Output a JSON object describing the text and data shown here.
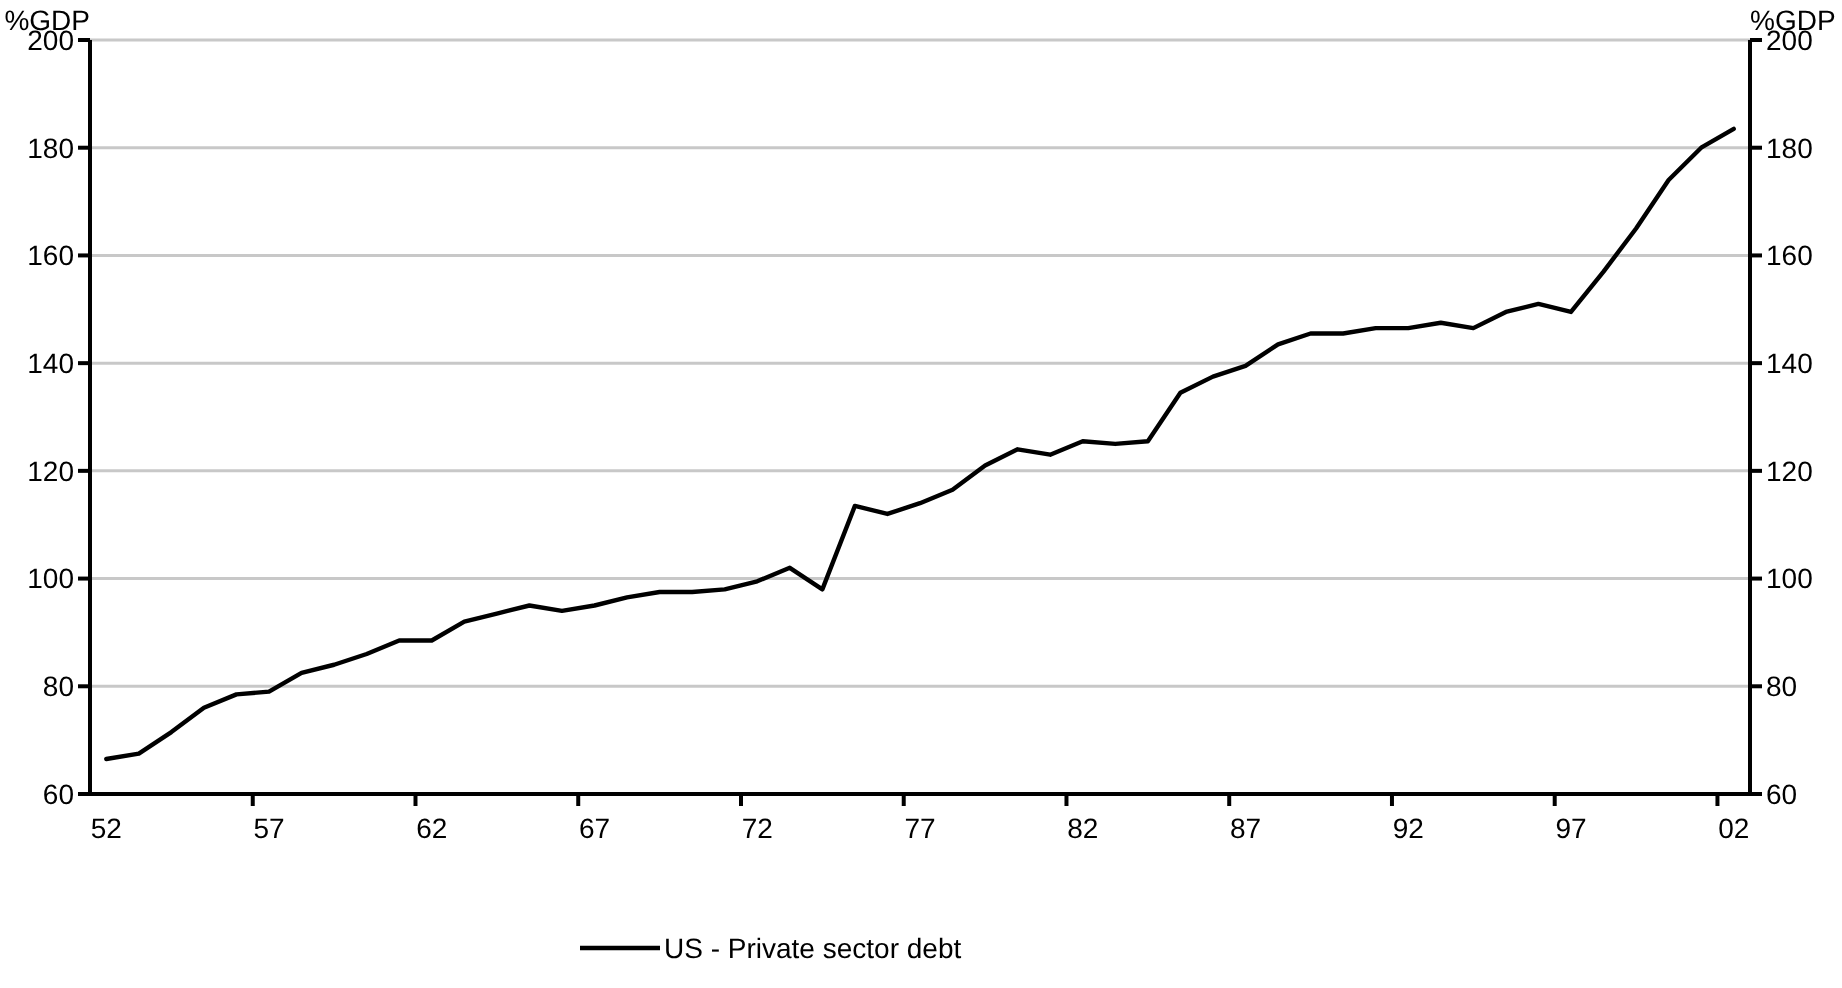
{
  "chart_data": {
    "type": "line",
    "ylabel": "%GDP",
    "y2label": "%GDP",
    "categories": [
      "52",
      null,
      null,
      null,
      null,
      "57",
      null,
      null,
      null,
      null,
      "62",
      null,
      null,
      null,
      null,
      "67",
      null,
      null,
      null,
      null,
      "72",
      null,
      null,
      null,
      null,
      "77",
      null,
      null,
      null,
      null,
      "82",
      null,
      null,
      null,
      null,
      "87",
      null,
      null,
      null,
      null,
      "92",
      null,
      null,
      null,
      null,
      "97",
      null,
      null,
      null,
      null,
      "02"
    ],
    "series": [
      {
        "name": "US - Private sector debt",
        "color": "#000000",
        "values": [
          66.5,
          67.5,
          71.5,
          76,
          78.5,
          79,
          82.5,
          84,
          86,
          88.5,
          88.5,
          92,
          93.5,
          95,
          94,
          95,
          96.5,
          97.5,
          97.5,
          98,
          99.5,
          102,
          98,
          113.5,
          112,
          114,
          116.5,
          121,
          124,
          123,
          125.5,
          125,
          125.5,
          134.5,
          137.5,
          139.5,
          143.5,
          145.5,
          145.5,
          146.5,
          146.5,
          147.5,
          146.5,
          149.5,
          151,
          149.5,
          157,
          165,
          174,
          180,
          183.5
        ]
      }
    ],
    "ylim": [
      60,
      200
    ],
    "yticks": [
      60,
      80,
      100,
      120,
      140,
      160,
      180,
      200
    ],
    "y2lim": [
      60,
      200
    ],
    "y2ticks": [
      60,
      80,
      100,
      120,
      140,
      160,
      180,
      200
    ],
    "grid": "y",
    "legend": "bottom",
    "marker": "none",
    "line_style": "solid"
  }
}
